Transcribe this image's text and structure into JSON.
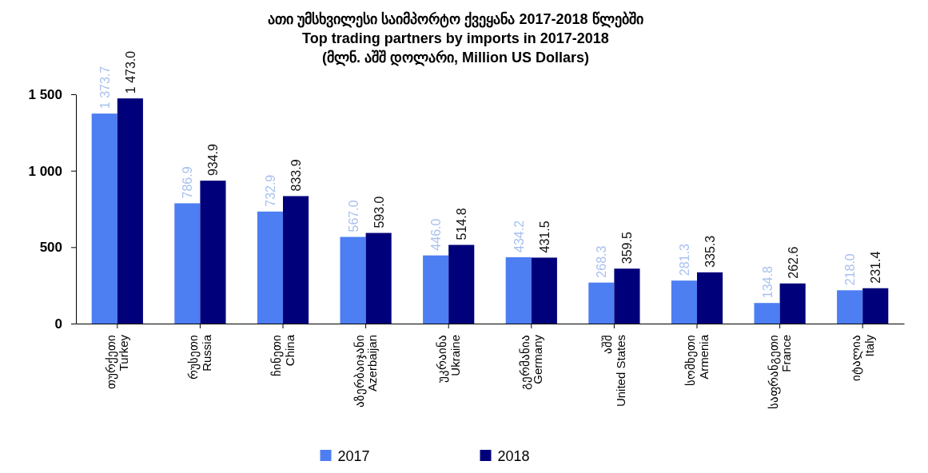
{
  "chart_data": {
    "type": "bar",
    "title": "ათი უმსხვილესი საიმპორტო ქვეყანა 2017-2018 წლებში",
    "subtitle": "Top trading  partners by imports in 2017-2018\n(მლნ. აშშ დოლარი, Million US Dollars)",
    "categories": [
      "თურქეთი\nTurkey",
      "რუსეთი\nRussia",
      "ჩინეთი\nChina",
      "აზერბაიჯანი\nAzerbaijan",
      "უკრაინა\nUkraine",
      "გერმანია\nGermany",
      "აშშ\nUnited States",
      "სომხეთი\nArmenia",
      "საფრანგეთი\nFrance",
      "იტალია\nItaly"
    ],
    "series": [
      {
        "name": "2017",
        "color": "#4d7ef2",
        "values": [
          1373.7,
          786.9,
          732.9,
          567.0,
          446.0,
          434.2,
          268.3,
          281.3,
          134.8,
          218.0
        ],
        "value_labels": [
          "1 373.7",
          "786.9",
          "732.9",
          "567.0",
          "446.0",
          "434.2",
          "268.3",
          "281.3",
          "134.8",
          "218.0"
        ]
      },
      {
        "name": "2018",
        "color": "#00007a",
        "values": [
          1473.0,
          934.9,
          833.9,
          593.0,
          514.8,
          431.5,
          359.5,
          335.3,
          262.6,
          231.4
        ],
        "value_labels": [
          "1 473.0",
          "934.9",
          "833.9",
          "593.0",
          "514.8",
          "431.5",
          "359.5",
          "335.3",
          "262.6",
          "231.4"
        ]
      }
    ],
    "ylim": [
      0,
      1500
    ],
    "yticks": [
      0,
      500,
      {
        "value": 1000,
        "label": "1 000"
      },
      {
        "value": 1500,
        "label": "1 500"
      }
    ],
    "legend": "bottom"
  }
}
